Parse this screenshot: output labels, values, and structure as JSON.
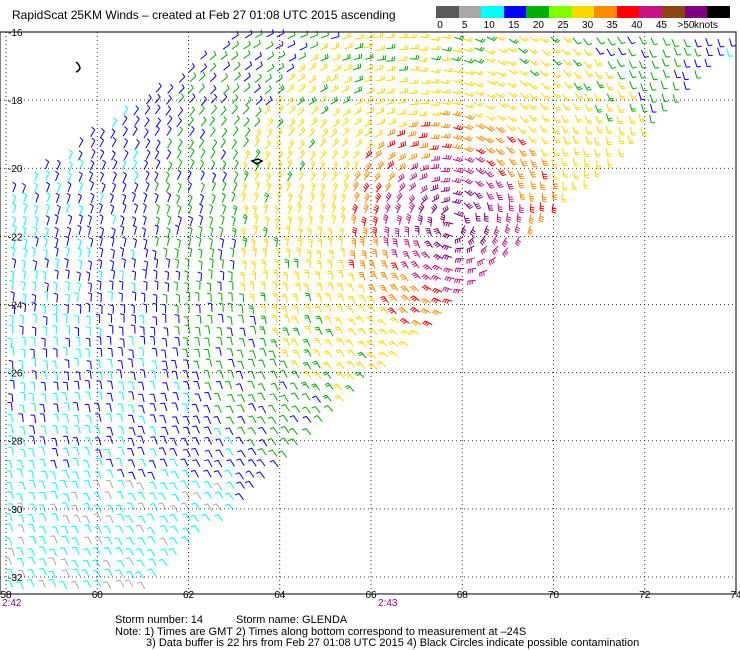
{
  "title": "RapidScat 25KM Winds – created at Feb 27 01:08 UTC 2015 ascending",
  "legend": {
    "labels": [
      "0",
      "5",
      "10",
      "15",
      "20",
      "25",
      "30",
      "35",
      "40",
      "45",
      ">50"
    ],
    "unit": "knots",
    "colors": [
      "#5a5a5a",
      "#a8a8a8",
      "#00ffff",
      "#0000ff",
      "#00b000",
      "#7fff00",
      "#ffd700",
      "#ff8c00",
      "#ff0000",
      "#c71585",
      "#8b4513",
      "#800080",
      "#000000"
    ]
  },
  "map": {
    "lat_labels": [
      "-16",
      "-18",
      "-20",
      "-22",
      "-24",
      "-26",
      "-28",
      "-30",
      "-32"
    ],
    "lon_labels": [
      "58",
      "60",
      "62",
      "64",
      "66",
      "68",
      "70",
      "72",
      "74"
    ],
    "lat_range": [
      -32.5,
      -16
    ],
    "lon_range": [
      58,
      74
    ]
  },
  "times": {
    "left": "2:42",
    "mid": "2:43"
  },
  "storm": {
    "number_label": "Storm number: 14",
    "name_label": "Storm name: GLENDA"
  },
  "notes": {
    "line1": "Note: 1) Times are GMT  2) Times along bottom correspond to measurement at –24S",
    "line2": "3) Data buffer is 22 hrs from Feb 27 01:08 UTC 2015   4) Black Circles indicate possible contamination"
  }
}
